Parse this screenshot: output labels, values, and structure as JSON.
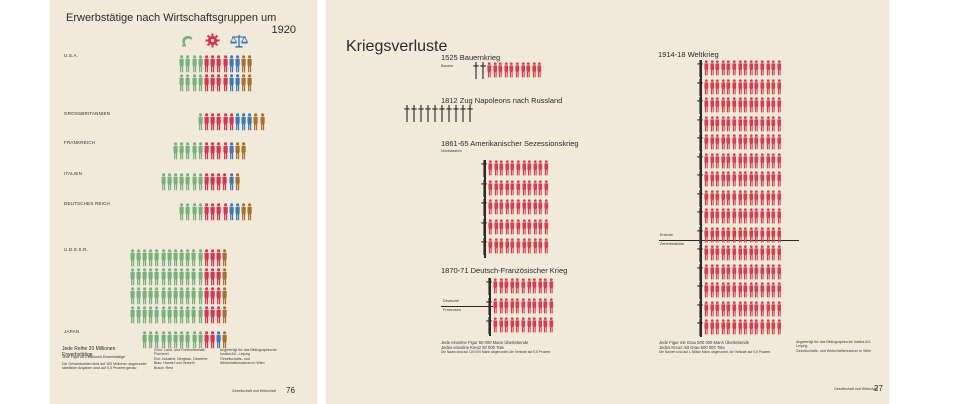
{
  "left": {
    "title_line1": "Erwerbstätige nach Wirtschaftsgruppen um",
    "title_line2": "1920",
    "icons": [
      "sickle-icon",
      "gear-icon",
      "scales-icon"
    ],
    "countries": [
      {
        "label": "U.S.A.",
        "rows": [
          [
            0,
            0,
            0,
            0,
            1,
            1,
            1,
            1,
            2,
            2,
            3,
            3
          ],
          [
            0,
            0,
            0,
            0,
            1,
            1,
            1,
            1,
            2,
            2,
            3,
            3
          ]
        ]
      },
      {
        "label": "GROSSBRITANNIEN",
        "rows": [
          [
            0,
            1,
            1,
            1,
            1,
            1,
            2,
            2,
            2,
            3,
            3
          ]
        ]
      },
      {
        "label": "FRANKREICH",
        "rows": [
          [
            0,
            0,
            0,
            0,
            0,
            1,
            1,
            1,
            1,
            2,
            3,
            3
          ]
        ]
      },
      {
        "label": "ITALIEN",
        "rows": [
          [
            0,
            0,
            0,
            0,
            0,
            0,
            0,
            1,
            1,
            1,
            1,
            2,
            3
          ]
        ]
      },
      {
        "label": "DEUTSCHES REICH",
        "rows": [
          [
            0,
            0,
            0,
            0,
            1,
            1,
            1,
            1,
            2,
            2,
            3,
            3
          ]
        ]
      },
      {
        "label": "U.d.S.S.R.",
        "rows": [
          [
            0,
            0,
            0,
            0,
            0,
            0,
            0,
            0,
            0,
            0,
            0,
            0,
            1,
            1,
            1,
            3
          ],
          [
            0,
            0,
            0,
            0,
            0,
            0,
            0,
            0,
            0,
            0,
            0,
            0,
            1,
            1,
            1,
            3
          ],
          [
            0,
            0,
            0,
            0,
            0,
            0,
            0,
            0,
            0,
            0,
            0,
            0,
            1,
            1,
            1,
            3
          ],
          [
            0,
            0,
            0,
            0,
            0,
            0,
            0,
            0,
            0,
            0,
            0,
            0,
            1,
            1,
            1,
            3
          ]
        ]
      },
      {
        "label": "JAPAN",
        "rows": [
          [
            0,
            0,
            0,
            0,
            0,
            0,
            0,
            0,
            0,
            0,
            1,
            1,
            2,
            3
          ]
        ]
      }
    ],
    "legend_main": "Jede Reihe 20 Millionen Erwerbstätige",
    "legend_sub": "Jede Figur ca 2 Millionen Erwerbstätige",
    "legend_small_a": "Die Gesamtzahlen sind auf 100 Millionen abgerundet",
    "legend_small_b": "sämtliche Angaben sind auf 0,5 Prozent genau",
    "legend_col2": [
      "Grün: Land- und Forstwirtschaft, Fischerei",
      "Rot: Industrie, Bergbau, Gewerbe",
      "Blau: Handel und Verkehr",
      "Braun: Rest"
    ],
    "legend_col3": [
      "Angefertigt für das Bibliographische Institut AG, Leipzig",
      "Gesellschafts- und Wirtschaftsmuseum in Wien"
    ],
    "footer": "Gesellschaft und Wirtschaft",
    "page_number": "76",
    "colors": {
      "green": "#78b07e",
      "red": "#d9344f",
      "blue": "#3d78b8",
      "brown": "#a8702a",
      "black": "#2a2a2a"
    }
  },
  "right": {
    "title": "Kriegsverluste",
    "wars": [
      {
        "title": "1525 Bauernkrieg",
        "sub": "Bauern",
        "crosses": 2,
        "figures": 10
      },
      {
        "title": "1812 Zug Napoleons nach Russland",
        "sub": "",
        "crosses": 10,
        "figures": 0
      },
      {
        "title": "1861-65 Amerikanischer Sezessionskrieg",
        "sub": "Nordstaaten"
      },
      {
        "title": "1870-71 Deutsch-Französischer Krieg",
        "sub_a": "Deutsche",
        "sub_b": "Franzosen"
      },
      {
        "title": "1914-18 Weltkrieg",
        "sub_a": "Entente",
        "sub_b": "Zentralmächte"
      }
    ],
    "legend_left": [
      "Jede einzelne Figur   50 000 Mann Überlebende",
      "Jedes einzelne Kreuz   50 000 Tote",
      "Die Naam sind auf 100 000 Mann abgerundet, die Verluste auf 0,5 Prozent"
    ],
    "legend_right": [
      "Jede Figur mit Grau   500 000 Mann Überlebende",
      "Jedes Kreuz mit Grau   500 000 Tote",
      "Die Namen sind auf 1 Million Mann abgerundet, die Verluste auf 0,5 Prozent"
    ],
    "credit": [
      "Angefertigt für das Bibliographische Institut AG, Leipzig",
      "Gesellschafts- und Wirtschaftsmuseum in Wien"
    ],
    "footer": "Gesellschaft und Wirtschaft",
    "page_number": "27",
    "colors": {
      "red": "#dd3a4c",
      "black": "#2a2a2a"
    }
  }
}
